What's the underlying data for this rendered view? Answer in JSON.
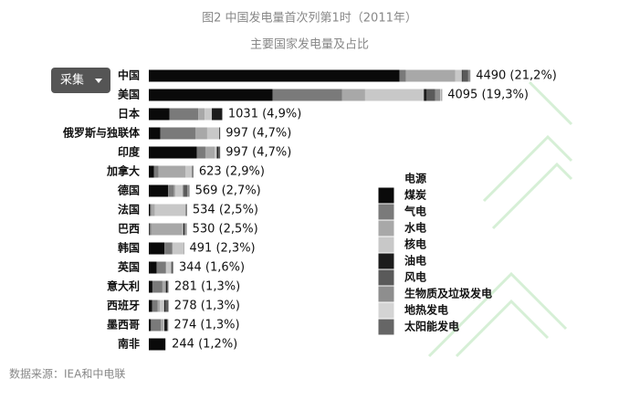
{
  "ui": {
    "button": "采集",
    "source": "数据来源：IEA和中电联"
  },
  "chart_data": {
    "type": "bar",
    "orientation": "horizontal",
    "stacked": true,
    "title": "图2 中国发电量首次列第1时（2011年）",
    "subtitle": "主要国家发电量及占比",
    "legend_title": "电源",
    "categories": [
      "中国",
      "美国",
      "日本",
      "俄罗斯与独联体",
      "印度",
      "加拿大",
      "德国",
      "法国",
      "巴西",
      "韩国",
      "英国",
      "意大利",
      "西班牙",
      "墨西哥",
      "南非"
    ],
    "totals": [
      4490,
      4095,
      1031,
      997,
      997,
      623,
      569,
      534,
      530,
      491,
      344,
      281,
      278,
      274,
      244
    ],
    "total_labels": [
      "4490 (21,2%)",
      "4095 (19,3%)",
      "1031 (4,9%)",
      "997 (4,7%)",
      "997 (4,7%)",
      "623 (2,9%)",
      "569 (2,7%)",
      "534 (2,5%)",
      "530 (2,5%)",
      "491 (2,3%)",
      "344 (1,6%)",
      "281 (1,3%)",
      "278 (1,3%)",
      "274 (1,3%)",
      "244 (1,2%)"
    ],
    "xlim": [
      0,
      5800
    ],
    "series": [
      {
        "name": "煤炭",
        "color": "#0a0a0a",
        "values": [
          3500,
          1730,
          290,
          160,
          670,
          70,
          270,
          18,
          10,
          218,
          110,
          50,
          45,
          30,
          230
        ]
      },
      {
        "name": "气电",
        "color": "#7a7a7a",
        "values": [
          90,
          970,
          400,
          490,
          120,
          65,
          80,
          17,
          25,
          110,
          127,
          140,
          80,
          140,
          0
        ]
      },
      {
        "name": "水电",
        "color": "#a8a8a8",
        "values": [
          690,
          320,
          90,
          165,
          130,
          375,
          20,
          50,
          430,
          8,
          6,
          48,
          32,
          36,
          2
        ]
      },
      {
        "name": "核电",
        "color": "#c8c8c8",
        "values": [
          90,
          820,
          100,
          170,
          30,
          95,
          110,
          430,
          16,
          150,
          70,
          0,
          58,
          10,
          12
        ]
      },
      {
        "name": "油电",
        "color": "#1c1c1c",
        "values": [
          10,
          40,
          140,
          10,
          20,
          5,
          8,
          3,
          16,
          4,
          3,
          20,
          15,
          45,
          0
        ]
      },
      {
        "name": "风电",
        "color": "#5a5a5a",
        "values": [
          80,
          120,
          5,
          0,
          25,
          10,
          49,
          12,
          3,
          1,
          16,
          10,
          42,
          2,
          0
        ]
      },
      {
        "name": "生物质及垃圾发电",
        "color": "#8e8e8e",
        "values": [
          30,
          70,
          5,
          2,
          2,
          3,
          32,
          4,
          30,
          0,
          12,
          8,
          6,
          2,
          0
        ]
      },
      {
        "name": "地热发电",
        "color": "#d4d4d4",
        "values": [
          0,
          17,
          0,
          0,
          0,
          0,
          0,
          0,
          0,
          0,
          0,
          5,
          0,
          6,
          0
        ]
      },
      {
        "name": "太阳能发电",
        "color": "#666666",
        "values": [
          0,
          8,
          1,
          0,
          0,
          0,
          0,
          0,
          0,
          0,
          0,
          0,
          0,
          3,
          0
        ]
      }
    ]
  }
}
